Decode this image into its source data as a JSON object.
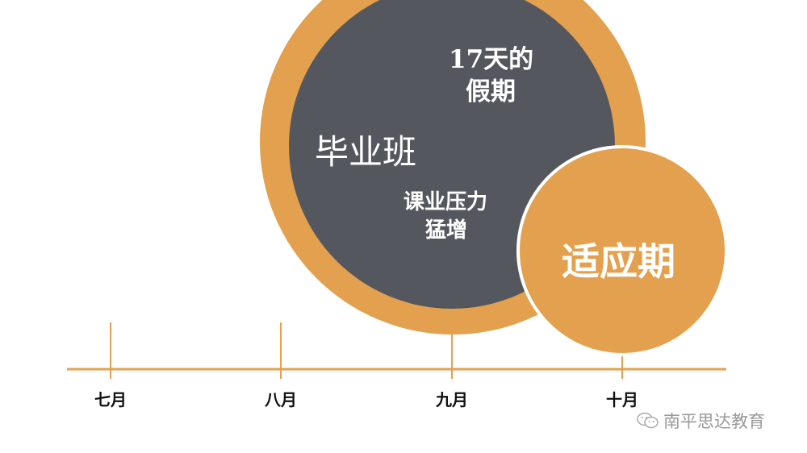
{
  "colors": {
    "accent": "#E3A04E",
    "dark": "#54575E",
    "text": "#111111"
  },
  "big_circle": {
    "title": "毕业班",
    "note1": "17天的",
    "note2": "假期",
    "note3": "课业压力",
    "note4": "猛增"
  },
  "small_circle": {
    "label": "适应期"
  },
  "timeline": {
    "months": [
      "七月",
      "八月",
      "九月",
      "十月"
    ]
  },
  "watermark": {
    "icon": "wechat-icon",
    "text": "南平思达教育"
  }
}
